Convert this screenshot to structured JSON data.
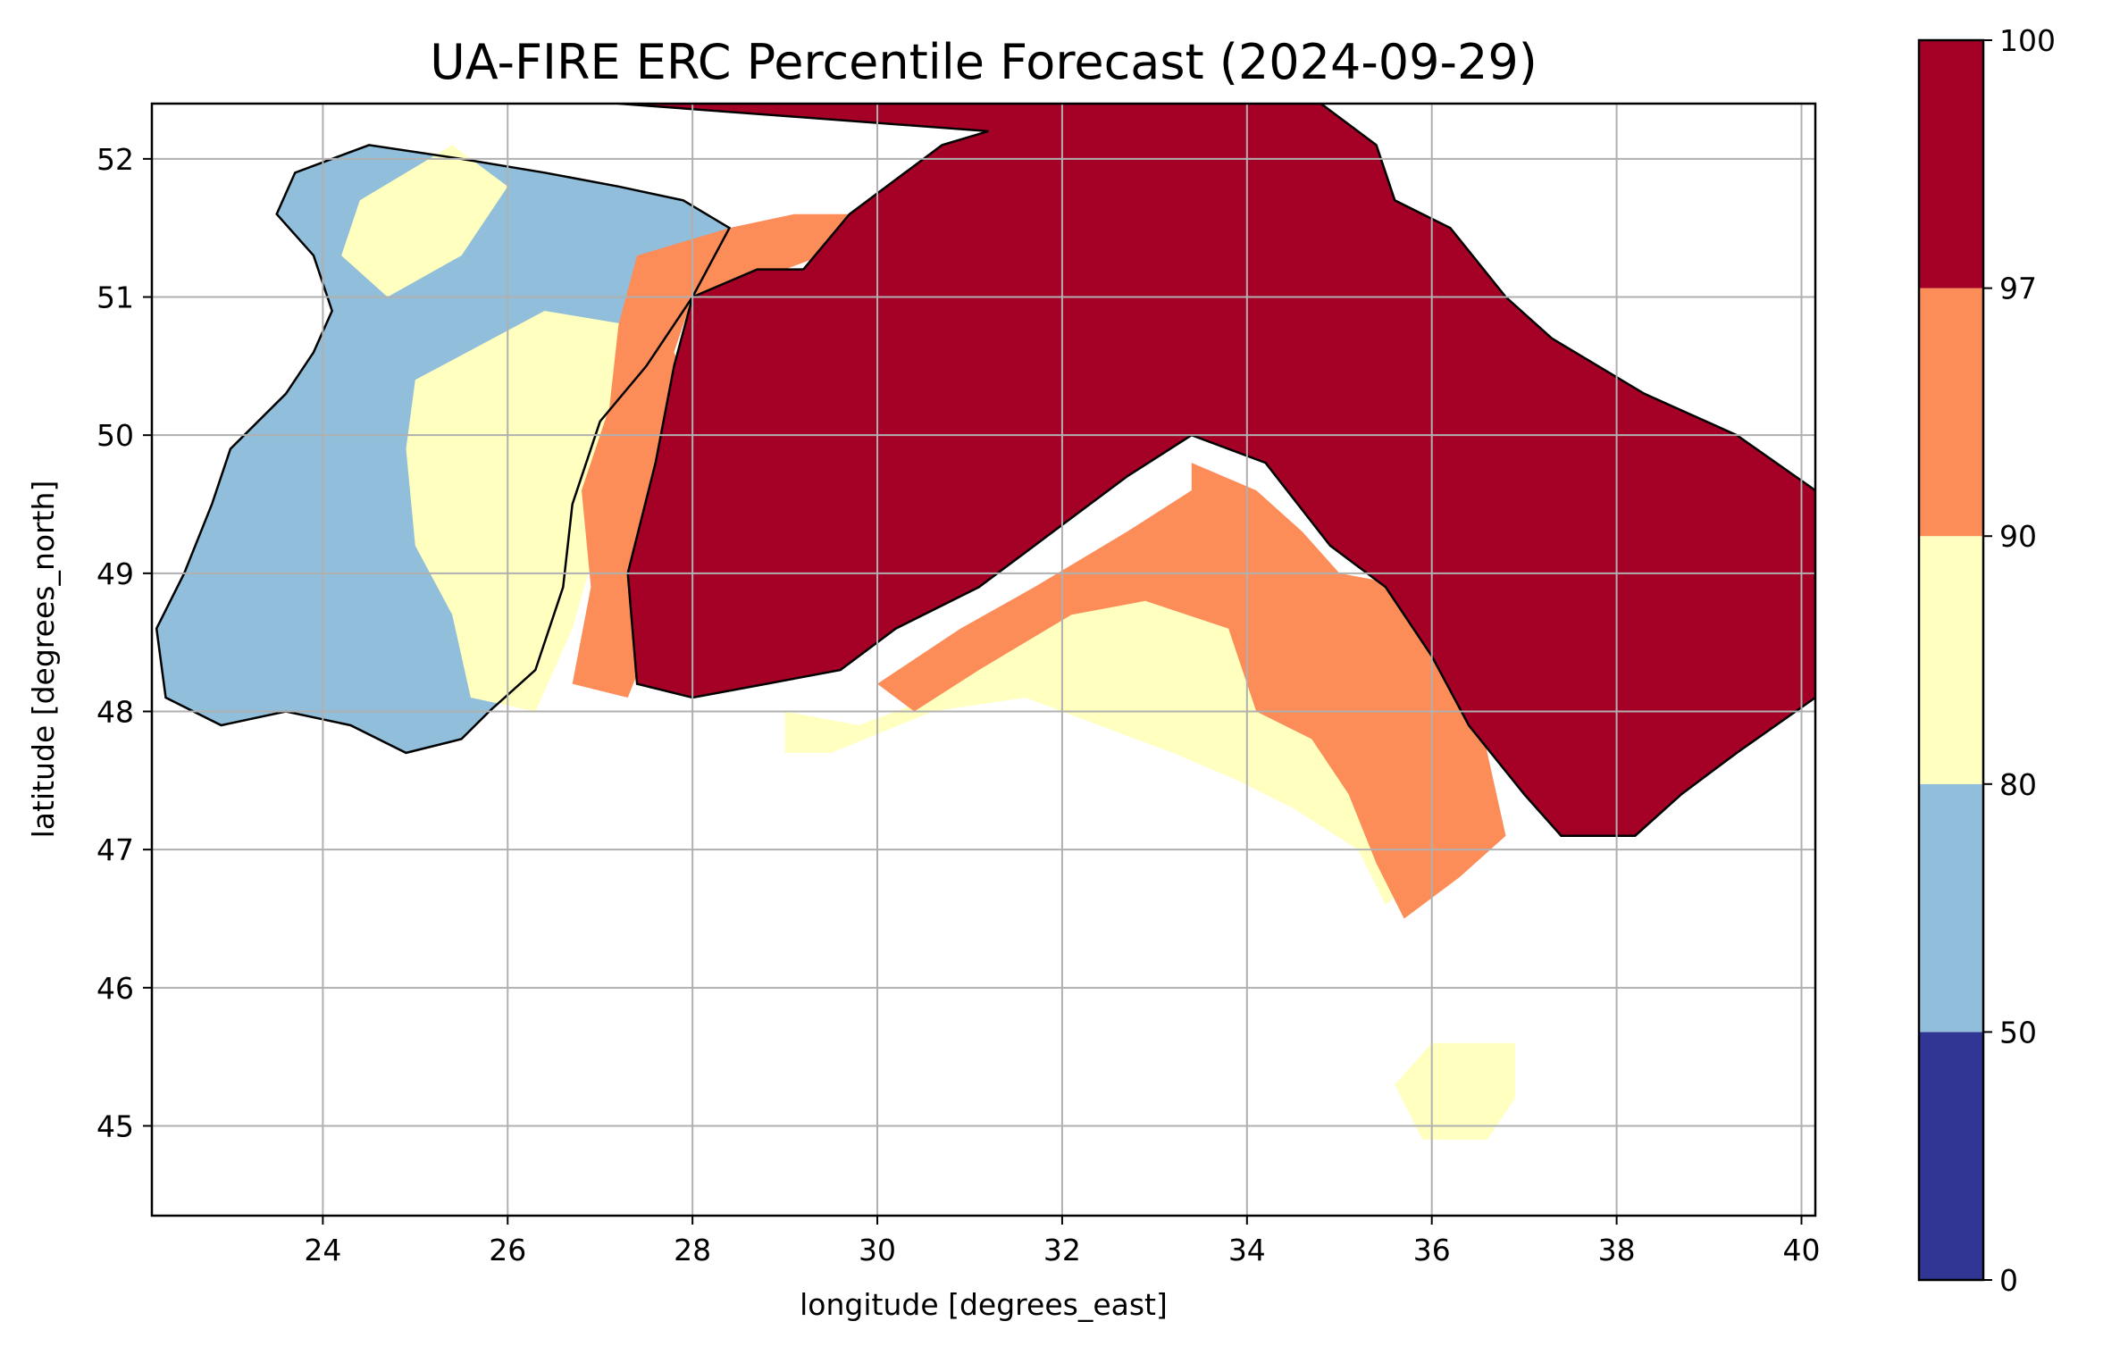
{
  "chart_data": {
    "type": "heatmap",
    "title": "UA-FIRE ERC Percentile Forecast (2024-09-29)",
    "xlabel": "longitude [degrees_east]",
    "ylabel": "latitude [degrees_north]",
    "xlim": [
      22.15,
      40.15
    ],
    "ylim": [
      44.35,
      52.4
    ],
    "xticks": [
      "24",
      "26",
      "28",
      "30",
      "32",
      "34",
      "36",
      "38",
      "40"
    ],
    "yticks": [
      "45",
      "46",
      "47",
      "48",
      "49",
      "50",
      "51",
      "52"
    ],
    "grid": true,
    "colorbar": {
      "ticks": [
        "0",
        "50",
        "80",
        "90",
        "97",
        "100"
      ],
      "bins": [
        {
          "range": [
            0,
            50
          ],
          "color": "#313695"
        },
        {
          "range": [
            50,
            80
          ],
          "color": "#91bfdb"
        },
        {
          "range": [
            80,
            90
          ],
          "color": "#ffffbf"
        },
        {
          "range": [
            90,
            97
          ],
          "color": "#fc8d59"
        },
        {
          "range": [
            97,
            100
          ],
          "color": "#a50026"
        }
      ]
    },
    "regions": [
      {
        "bin": 1,
        "polygon": [
          [
            22.2,
            48.6
          ],
          [
            22.5,
            49.0
          ],
          [
            22.8,
            49.5
          ],
          [
            23.0,
            49.9
          ],
          [
            23.6,
            50.3
          ],
          [
            23.9,
            50.6
          ],
          [
            24.1,
            50.9
          ],
          [
            23.9,
            51.3
          ],
          [
            23.5,
            51.6
          ],
          [
            23.7,
            51.9
          ],
          [
            24.5,
            52.1
          ],
          [
            25.5,
            52.0
          ],
          [
            26.4,
            51.9
          ],
          [
            27.2,
            51.8
          ],
          [
            27.9,
            51.7
          ],
          [
            28.4,
            51.5
          ],
          [
            28.0,
            51.0
          ],
          [
            27.5,
            50.5
          ],
          [
            27.0,
            50.1
          ],
          [
            26.7,
            49.5
          ],
          [
            26.6,
            48.9
          ],
          [
            26.3,
            48.3
          ],
          [
            25.8,
            48.0
          ],
          [
            25.5,
            47.8
          ],
          [
            24.9,
            47.7
          ],
          [
            24.3,
            47.9
          ],
          [
            23.6,
            48.0
          ],
          [
            22.9,
            47.9
          ],
          [
            22.3,
            48.1
          ]
        ]
      },
      {
        "bin": 2,
        "polygon": [
          [
            24.4,
            51.7
          ],
          [
            25.4,
            52.1
          ],
          [
            26.0,
            51.8
          ],
          [
            25.5,
            51.3
          ],
          [
            24.7,
            51.0
          ],
          [
            24.2,
            51.3
          ]
        ]
      },
      {
        "bin": 2,
        "polygon": [
          [
            25.0,
            50.4
          ],
          [
            26.4,
            50.9
          ],
          [
            27.3,
            50.8
          ],
          [
            27.4,
            50.0
          ],
          [
            27.0,
            49.3
          ],
          [
            26.7,
            48.6
          ],
          [
            26.3,
            48.0
          ],
          [
            25.6,
            48.1
          ],
          [
            25.4,
            48.7
          ],
          [
            25.0,
            49.2
          ],
          [
            24.9,
            49.9
          ]
        ]
      },
      {
        "bin": 2,
        "polygon": [
          [
            29.0,
            48.0
          ],
          [
            29.8,
            47.9
          ],
          [
            30.6,
            48.1
          ],
          [
            31.2,
            48.5
          ],
          [
            32.2,
            48.8
          ],
          [
            33.0,
            48.9
          ],
          [
            33.8,
            48.7
          ],
          [
            34.1,
            48.2
          ],
          [
            34.8,
            47.8
          ],
          [
            35.2,
            47.6
          ],
          [
            35.8,
            47.4
          ],
          [
            36.0,
            46.9
          ],
          [
            35.5,
            46.6
          ],
          [
            35.2,
            47.0
          ],
          [
            34.5,
            47.3
          ],
          [
            33.9,
            47.5
          ],
          [
            33.2,
            47.7
          ],
          [
            32.4,
            47.9
          ],
          [
            31.6,
            48.1
          ],
          [
            30.6,
            48.0
          ],
          [
            29.5,
            47.7
          ],
          [
            29.0,
            47.7
          ]
        ]
      },
      {
        "bin": 2,
        "polygon": [
          [
            36.0,
            45.6
          ],
          [
            36.9,
            45.6
          ],
          [
            36.9,
            45.2
          ],
          [
            36.6,
            44.9
          ],
          [
            35.9,
            44.9
          ],
          [
            35.6,
            45.3
          ]
        ]
      },
      {
        "bin": 3,
        "polygon": [
          [
            27.4,
            51.3
          ],
          [
            28.4,
            51.5
          ],
          [
            29.1,
            51.6
          ],
          [
            29.9,
            51.6
          ],
          [
            29.4,
            51.3
          ],
          [
            28.6,
            51.1
          ],
          [
            28.0,
            51.0
          ],
          [
            27.8,
            50.6
          ],
          [
            28.1,
            50.1
          ],
          [
            27.9,
            49.6
          ],
          [
            27.6,
            49.2
          ],
          [
            27.6,
            48.6
          ],
          [
            27.3,
            48.1
          ],
          [
            26.7,
            48.2
          ],
          [
            26.9,
            48.9
          ],
          [
            26.8,
            49.6
          ],
          [
            27.1,
            50.2
          ],
          [
            27.2,
            50.8
          ]
        ]
      },
      {
        "bin": 3,
        "polygon": [
          [
            30.0,
            48.2
          ],
          [
            30.9,
            48.6
          ],
          [
            31.7,
            48.9
          ],
          [
            32.7,
            49.3
          ],
          [
            33.4,
            49.6
          ],
          [
            33.4,
            49.8
          ],
          [
            34.1,
            49.6
          ],
          [
            34.6,
            49.3
          ],
          [
            35.0,
            49.0
          ],
          [
            35.8,
            48.9
          ],
          [
            36.4,
            48.4
          ],
          [
            36.6,
            47.7
          ],
          [
            36.8,
            47.1
          ],
          [
            36.3,
            46.8
          ],
          [
            35.7,
            46.5
          ],
          [
            35.4,
            46.9
          ],
          [
            35.1,
            47.4
          ],
          [
            34.7,
            47.8
          ],
          [
            34.1,
            48.0
          ],
          [
            33.8,
            48.6
          ],
          [
            32.9,
            48.8
          ],
          [
            32.1,
            48.7
          ],
          [
            31.1,
            48.3
          ],
          [
            30.4,
            48.0
          ]
        ]
      },
      {
        "bin": 4,
        "polygon": [
          [
            27.2,
            52.4
          ],
          [
            34.8,
            52.4
          ],
          [
            35.4,
            52.1
          ],
          [
            35.6,
            51.7
          ],
          [
            36.2,
            51.5
          ],
          [
            36.8,
            51.0
          ],
          [
            37.3,
            50.7
          ],
          [
            38.3,
            50.3
          ],
          [
            39.3,
            50.0
          ],
          [
            40.15,
            49.6
          ],
          [
            40.15,
            48.1
          ],
          [
            39.3,
            47.7
          ],
          [
            38.7,
            47.4
          ],
          [
            38.2,
            47.1
          ],
          [
            37.4,
            47.1
          ],
          [
            37.0,
            47.4
          ],
          [
            36.4,
            47.9
          ],
          [
            36.0,
            48.4
          ],
          [
            35.5,
            48.9
          ],
          [
            34.9,
            49.2
          ],
          [
            34.2,
            49.8
          ],
          [
            33.4,
            50.0
          ],
          [
            32.7,
            49.7
          ],
          [
            31.9,
            49.3
          ],
          [
            31.1,
            48.9
          ],
          [
            30.2,
            48.6
          ],
          [
            29.6,
            48.3
          ],
          [
            28.8,
            48.2
          ],
          [
            28.0,
            48.1
          ],
          [
            27.4,
            48.2
          ],
          [
            27.3,
            49.0
          ],
          [
            27.6,
            49.8
          ],
          [
            27.8,
            50.5
          ],
          [
            28.0,
            51.0
          ],
          [
            28.7,
            51.2
          ],
          [
            29.2,
            51.2
          ],
          [
            29.7,
            51.6
          ],
          [
            30.3,
            51.9
          ],
          [
            30.7,
            52.1
          ],
          [
            31.2,
            52.2
          ]
        ]
      }
    ]
  }
}
